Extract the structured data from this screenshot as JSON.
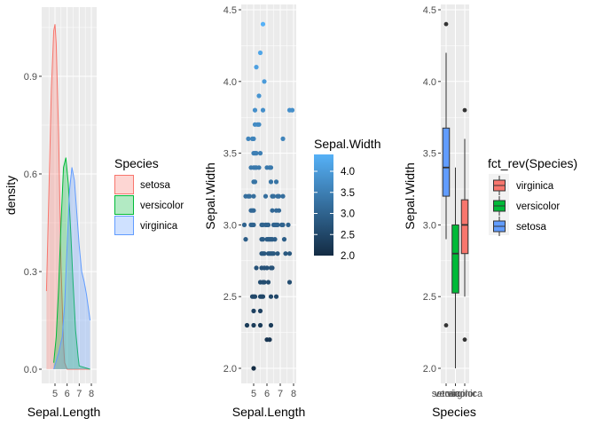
{
  "chart_data": [
    {
      "type": "area",
      "subtype": "density",
      "title": "",
      "xlabel": "Sepal.Length",
      "ylabel": "density",
      "xlim": [
        4.3,
        7.9
      ],
      "ylim": [
        0,
        1.06
      ],
      "x_ticks": [
        "5",
        "6",
        "7",
        "8"
      ],
      "y_ticks": [
        "0.0",
        "0.3",
        "0.6",
        "0.9"
      ],
      "grid": true,
      "legend": {
        "title": "Species",
        "position": "right",
        "entries": [
          "setosa",
          "versicolor",
          "virginica"
        ]
      },
      "series": [
        {
          "name": "setosa",
          "color": "#F8766D",
          "x": [
            4.3,
            4.5,
            4.7,
            4.9,
            5.0,
            5.1,
            5.3,
            5.5,
            5.7,
            5.8,
            6.0,
            7.9
          ],
          "y": [
            0.24,
            0.55,
            0.86,
            1.04,
            1.06,
            1.0,
            0.72,
            0.32,
            0.08,
            0.02,
            0.0,
            0.0
          ]
        },
        {
          "name": "versicolor",
          "color": "#00BA38",
          "x": [
            4.9,
            5.1,
            5.3,
            5.5,
            5.7,
            5.9,
            6.1,
            6.3,
            6.5,
            6.7,
            6.9,
            7.0,
            7.9
          ],
          "y": [
            0.02,
            0.1,
            0.25,
            0.45,
            0.62,
            0.65,
            0.57,
            0.42,
            0.26,
            0.12,
            0.04,
            0.01,
            0.0
          ]
        },
        {
          "name": "virginica",
          "color": "#619CFF",
          "x": [
            4.9,
            5.3,
            5.6,
            5.8,
            6.0,
            6.2,
            6.4,
            6.6,
            6.8,
            7.0,
            7.2,
            7.4,
            7.6,
            7.9
          ],
          "y": [
            0.0,
            0.05,
            0.1,
            0.2,
            0.38,
            0.55,
            0.62,
            0.58,
            0.48,
            0.38,
            0.3,
            0.27,
            0.23,
            0.15
          ]
        }
      ]
    },
    {
      "type": "scatter",
      "title": "",
      "xlabel": "Sepal.Length",
      "ylabel": "Sepal.Width",
      "xlim": [
        4.3,
        7.9
      ],
      "ylim": [
        2.0,
        4.4
      ],
      "x_ticks": [
        "5",
        "6",
        "7",
        "8"
      ],
      "y_ticks": [
        "2.0",
        "2.5",
        "3.0",
        "3.5",
        "4.0",
        "4.5"
      ],
      "grid": true,
      "legend": {
        "title": "Sepal.Width",
        "position": "right",
        "type": "colorbar",
        "labels": [
          "2.0",
          "2.5",
          "3.0",
          "3.5",
          "4.0"
        ],
        "low_color": "#132B43",
        "high_color": "#56B1F7",
        "range": [
          2.0,
          4.4
        ]
      },
      "points": [
        [
          5.7,
          4.4
        ],
        [
          5.5,
          4.2
        ],
        [
          5.2,
          4.1
        ],
        [
          5.8,
          4.0
        ],
        [
          5.4,
          3.9
        ],
        [
          5.1,
          3.8
        ],
        [
          5.7,
          3.8
        ],
        [
          7.7,
          3.8
        ],
        [
          7.9,
          3.8
        ],
        [
          5.1,
          3.7
        ],
        [
          5.3,
          3.7
        ],
        [
          5.4,
          3.7
        ],
        [
          4.6,
          3.6
        ],
        [
          4.9,
          3.6
        ],
        [
          5.0,
          3.6
        ],
        [
          7.2,
          3.6
        ],
        [
          5.0,
          3.5
        ],
        [
          5.1,
          3.5
        ],
        [
          5.2,
          3.5
        ],
        [
          5.5,
          3.5
        ],
        [
          4.8,
          3.4
        ],
        [
          5.0,
          3.4
        ],
        [
          5.1,
          3.4
        ],
        [
          5.2,
          3.4
        ],
        [
          5.4,
          3.4
        ],
        [
          6.0,
          3.4
        ],
        [
          6.2,
          3.4
        ],
        [
          6.3,
          3.4
        ],
        [
          5.0,
          3.3
        ],
        [
          5.1,
          3.3
        ],
        [
          6.3,
          3.3
        ],
        [
          6.7,
          3.3
        ],
        [
          4.4,
          3.2
        ],
        [
          4.6,
          3.2
        ],
        [
          4.7,
          3.2
        ],
        [
          5.0,
          3.2
        ],
        [
          5.9,
          3.2
        ],
        [
          6.4,
          3.2
        ],
        [
          6.5,
          3.2
        ],
        [
          6.8,
          3.2
        ],
        [
          6.9,
          3.2
        ],
        [
          7.2,
          3.2
        ],
        [
          4.8,
          3.1
        ],
        [
          4.9,
          3.1
        ],
        [
          5.0,
          3.1
        ],
        [
          6.4,
          3.1
        ],
        [
          6.7,
          3.1
        ],
        [
          6.9,
          3.1
        ],
        [
          4.3,
          3.0
        ],
        [
          4.8,
          3.0
        ],
        [
          4.9,
          3.0
        ],
        [
          5.0,
          3.0
        ],
        [
          5.6,
          3.0
        ],
        [
          5.7,
          3.0
        ],
        [
          5.9,
          3.0
        ],
        [
          6.0,
          3.0
        ],
        [
          6.1,
          3.0
        ],
        [
          6.5,
          3.0
        ],
        [
          6.6,
          3.0
        ],
        [
          6.7,
          3.0
        ],
        [
          6.8,
          3.0
        ],
        [
          7.1,
          3.0
        ],
        [
          7.2,
          3.0
        ],
        [
          7.6,
          3.0
        ],
        [
          4.4,
          2.9
        ],
        [
          5.6,
          2.9
        ],
        [
          5.7,
          2.9
        ],
        [
          6.0,
          2.9
        ],
        [
          6.1,
          2.9
        ],
        [
          6.2,
          2.9
        ],
        [
          6.3,
          2.9
        ],
        [
          6.4,
          2.9
        ],
        [
          6.6,
          2.9
        ],
        [
          7.3,
          2.9
        ],
        [
          5.6,
          2.8
        ],
        [
          5.7,
          2.8
        ],
        [
          5.8,
          2.8
        ],
        [
          6.1,
          2.8
        ],
        [
          6.2,
          2.8
        ],
        [
          6.3,
          2.8
        ],
        [
          6.4,
          2.8
        ],
        [
          6.5,
          2.8
        ],
        [
          6.8,
          2.8
        ],
        [
          7.4,
          2.8
        ],
        [
          7.7,
          2.8
        ],
        [
          5.2,
          2.7
        ],
        [
          5.6,
          2.7
        ],
        [
          5.8,
          2.7
        ],
        [
          6.0,
          2.7
        ],
        [
          6.3,
          2.7
        ],
        [
          6.4,
          2.7
        ],
        [
          5.5,
          2.6
        ],
        [
          5.7,
          2.6
        ],
        [
          5.8,
          2.6
        ],
        [
          6.1,
          2.6
        ],
        [
          7.7,
          2.6
        ],
        [
          4.9,
          2.5
        ],
        [
          5.0,
          2.5
        ],
        [
          5.1,
          2.5
        ],
        [
          5.5,
          2.5
        ],
        [
          5.6,
          2.5
        ],
        [
          5.7,
          2.5
        ],
        [
          6.3,
          2.5
        ],
        [
          6.7,
          2.5
        ],
        [
          5.0,
          2.4
        ],
        [
          5.5,
          2.4
        ],
        [
          4.5,
          2.3
        ],
        [
          5.0,
          2.3
        ],
        [
          5.5,
          2.3
        ],
        [
          6.3,
          2.3
        ],
        [
          6.0,
          2.2
        ],
        [
          6.2,
          2.2
        ],
        [
          5.0,
          2.0
        ]
      ]
    },
    {
      "type": "box",
      "title": "",
      "xlabel": "Species",
      "ylabel": "Sepal.Width",
      "ylim": [
        2.0,
        4.4
      ],
      "categories": [
        "setosa",
        "versicolor",
        "virginica"
      ],
      "x_ticks": [
        "setosa",
        "versicolor",
        "virginica"
      ],
      "y_ticks": [
        "2.0",
        "2.5",
        "3.0",
        "3.5",
        "4.0",
        "4.5"
      ],
      "grid": true,
      "legend": {
        "title": "fct_rev(Species)",
        "position": "right",
        "entries": [
          "virginica",
          "versicolor",
          "setosa"
        ]
      },
      "boxes": [
        {
          "name": "setosa",
          "color": "#619CFF",
          "whisker_low": 2.9,
          "q1": 3.2,
          "median": 3.4,
          "q3": 3.675,
          "whisker_high": 4.2,
          "outliers": [
            4.4,
            2.3
          ]
        },
        {
          "name": "versicolor",
          "color": "#00BA38",
          "whisker_low": 2.0,
          "q1": 2.525,
          "median": 2.8,
          "q3": 3.0,
          "whisker_high": 3.4,
          "outliers": []
        },
        {
          "name": "virginica",
          "color": "#F8766D",
          "whisker_low": 2.5,
          "q1": 2.8,
          "median": 3.0,
          "q3": 3.175,
          "whisker_high": 3.6,
          "outliers": [
            3.8,
            2.2
          ]
        }
      ]
    }
  ]
}
